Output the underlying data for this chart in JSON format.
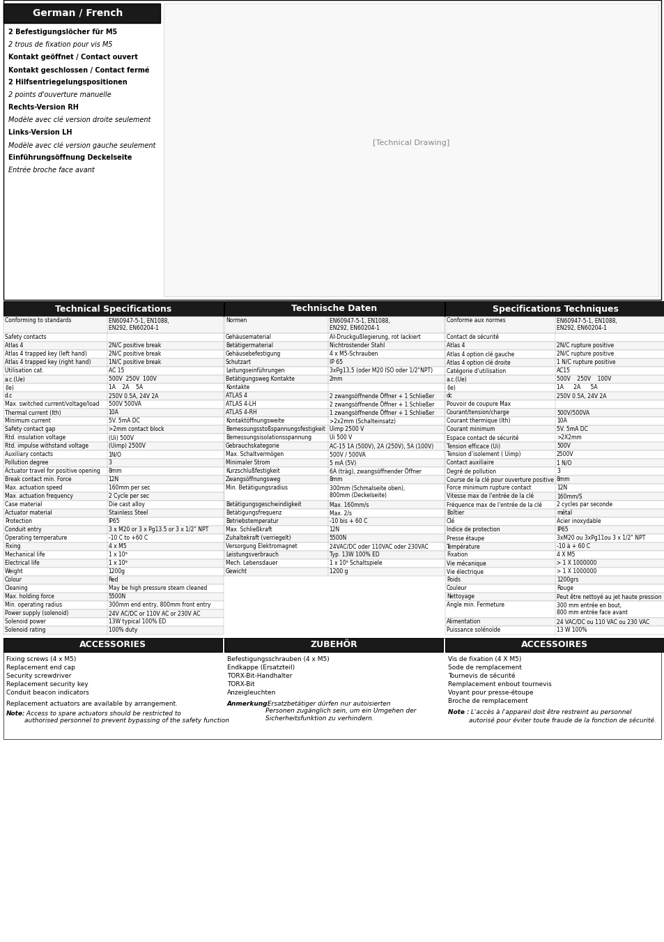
{
  "page_bg": "#ffffff",
  "top_section": {
    "header_bg": "#000000",
    "header_text": "German / French",
    "header_text_color": "#ffffff",
    "left_text_lines": [
      {
        "text": "2 Befestigungslöcher für M5",
        "bold": true,
        "italic": false
      },
      {
        "text": "2 trous de fixation pour vis M5",
        "bold": false,
        "italic": true
      },
      {
        "text": "Kontakt geöffnet / Contact ouvert",
        "bold": true,
        "italic": false
      },
      {
        "text": "Kontakt geschlossen / Contact fermé",
        "bold": true,
        "italic": false
      },
      {
        "text": "2 Hilfsentriegelungspositionen",
        "bold": true,
        "italic": false
      },
      {
        "text": "2 points d'ouverture manuelle",
        "bold": false,
        "italic": true
      },
      {
        "text": "Rechts-Version RH",
        "bold": true,
        "italic": false
      },
      {
        "text": "Modèle avec clé version droite seulement",
        "bold": false,
        "italic": true
      },
      {
        "text": "Links-Version LH",
        "bold": true,
        "italic": false
      },
      {
        "text": "Modèle avec clé version gauche seulement",
        "bold": false,
        "italic": true
      },
      {
        "text": "Einführungsöffnung Deckelseite",
        "bold": true,
        "italic": false
      },
      {
        "text": "Entrée broche face avant",
        "bold": false,
        "italic": true
      }
    ]
  },
  "tech_specs_col1": {
    "header": "Technical Specifications",
    "rows": [
      [
        "Conforming to standards",
        "EN60947-5-1, EN1088,\nEN292, EN60204-1"
      ],
      [
        "Safety contacts",
        ""
      ],
      [
        "Atlas 4",
        "2N/C positive break"
      ],
      [
        "Atlas 4 trapped key (left hand)",
        "2N/C positive break"
      ],
      [
        "Atlas 4 trapped key (right hand)",
        "1N/C positive break"
      ],
      [
        "Utilisation cat.",
        "AC 15"
      ],
      [
        "a.c.(Ue)",
        "500V  250V  100V"
      ],
      [
        "(le)",
        "1A    2A    5A"
      ],
      [
        "d.c",
        "250V 0.5A, 24V 2A"
      ],
      [
        "Max. switched current/voltage/load",
        "500V 500VA"
      ],
      [
        "Thermal current (Ith)",
        "10A"
      ],
      [
        "Minimum current",
        "5V. 5mA DC"
      ],
      [
        "Safety contact gap",
        ">2mm contact block"
      ],
      [
        "Rtd. insulation voltage",
        "(Ui) 500V"
      ],
      [
        "Rtd. impulse withstand voltage",
        "(Uimp) 2500V"
      ],
      [
        "Auxiliary contacts",
        "1N/O"
      ],
      [
        "Pollution degree",
        "3"
      ],
      [
        "Actuator travel for positive opening",
        "8mm"
      ],
      [
        "Break contact min. Force",
        "12N"
      ],
      [
        "Max. actuation speed",
        "160mm per sec"
      ],
      [
        "Max. actuation frequency",
        "2 Cycle per sec"
      ],
      [
        "Case material",
        "Die cast alloy"
      ],
      [
        "Actuator material",
        "Stainless Steel"
      ],
      [
        "Protection",
        "IP65"
      ],
      [
        "Conduit entry",
        "3 x M20 or 3 x Pg13.5 or 3 x 1/2\" NPT"
      ],
      [
        "Operating temperature",
        "-10 C to +60 C"
      ],
      [
        "Fixing",
        "4 x M5"
      ],
      [
        "Mechanical life",
        "1 x 10⁶"
      ],
      [
        "Electrical life",
        "1 x 10⁶"
      ],
      [
        "Weight",
        "1200g"
      ],
      [
        "Colour",
        "Red"
      ],
      [
        "Cleaning",
        "May be high pressure steam cleaned"
      ],
      [
        "Max. holding force",
        "5500N"
      ],
      [
        "Min. operating radius",
        "300mm end entry, 800mm front entry"
      ],
      [
        "Power supply (solenoid)",
        "24V AC/DC or 110V AC or 230V AC"
      ],
      [
        "Solenoid power",
        "13W typical 100% ED"
      ],
      [
        "Solenoid rating",
        "100% duty"
      ]
    ]
  },
  "tech_specs_col2": {
    "header": "Technische Daten",
    "rows": [
      [
        "Normen",
        "EN60947-5-1, EN1088,\nEN292, EN60204-1"
      ],
      [
        "Gehäusematerial",
        "Al-Druckgußlegierung, rot lackiert"
      ],
      [
        "Betätigermaterial",
        "Nichtrostender Stahl"
      ],
      [
        "Gehäusebefestigung",
        "4 x M5-Schrauben"
      ],
      [
        "Schutzart",
        "IP 65"
      ],
      [
        "Leitungseinführungen",
        "3xPg13,5 (oder M20 ISO oder 1/2\"NPT)"
      ],
      [
        "Betätigungsweg Kontakte",
        "2mm"
      ],
      [
        "Kontakte",
        ""
      ],
      [
        "ATLAS 4",
        "2 zwangsöffnende Öffner + 1 Schließer"
      ],
      [
        "ATLAS 4-LH",
        "2 zwangsöffnende Öffner + 1 Schließer"
      ],
      [
        "ATLAS 4-RH",
        "1 zwangsöffnende Öffner + 1 Schließer"
      ],
      [
        "Kontaktöffnungsweite",
        ">2x2mm (Schalteinsatz)"
      ],
      [
        "Bemessungsstoßspannungsfestigkeit",
        "Uimp 2500 V"
      ],
      [
        "Bemessungsisolationsspannung",
        "Ui 500 V"
      ],
      [
        "Gebrauchskategorie",
        "AC-15 1A (500V), 2A (250V), 5A (100V)"
      ],
      [
        "Max. Schaltvermögen",
        "500V / 500VA"
      ],
      [
        "Minimaler Strom",
        "5 mA (5V)"
      ],
      [
        "Kurzschlußfestigkeit",
        "6A (träg), zwangsöffnender Öffner"
      ],
      [
        "Zwangsöffnungsweg",
        "8mm"
      ],
      [
        "Min. Betätigungsradius",
        "300mm (Schmalseite oben),\n800mm (Deckelseite)"
      ],
      [
        "Betätigungsgeschwindigkeit",
        "Max. 160mm/s"
      ],
      [
        "Betätigungsfrequenz",
        "Max. 2/s"
      ],
      [
        "Betriebstemperatur",
        "-10 bis + 60 C"
      ],
      [
        "Max. Schließkraft",
        "12N"
      ],
      [
        "Zuhaltekraft (verriegelt)",
        "5500N"
      ],
      [
        "Versorgung Elektromagnet",
        "24VAC/DC oder 110VAC oder 230VAC"
      ],
      [
        "Leistungsverbrauch",
        "Typ. 13W 100% ED"
      ],
      [
        "Mech. Lebensdauer",
        "1 x 10⁶ Schaltspiele"
      ],
      [
        "Gewicht",
        "1200 g"
      ]
    ]
  },
  "tech_specs_col3": {
    "header": "Specifications Techniques",
    "rows": [
      [
        "Conforme aux normes",
        "EN60947-5-1, EN1088,\nEN292, EN60204-1"
      ],
      [
        "Contact de sécurité",
        ""
      ],
      [
        "Atlas 4",
        "2N/C rupture positive"
      ],
      [
        "Atlas 4 option clé gauche",
        "2N/C rupture positive"
      ],
      [
        "Atlas 4 option clé droite",
        "1 N/C rupture positive"
      ],
      [
        "Catégorie d'utilisation",
        "AC15"
      ],
      [
        "a.c.(Ue)",
        "500V    250V    100V"
      ],
      [
        "(le)",
        "1A      2A      5A"
      ],
      [
        "dc",
        "250V 0.5A, 24V 2A"
      ],
      [
        "Pouvoir de coupure Max",
        ""
      ],
      [
        "Courant/tension/charge",
        "500V/500VA"
      ],
      [
        "Courant thermique (Ith)",
        "10A"
      ],
      [
        "Courant minimum",
        "5V. 5mA DC"
      ],
      [
        "Espace contact de sécurité",
        ">2X2mm"
      ],
      [
        "Tension efficace (Ui)",
        "500V"
      ],
      [
        "Tension d'isolement ( Uimp)",
        "2500V"
      ],
      [
        "Contact auxiliaire",
        "1 N/O"
      ],
      [
        "Degré de pollution",
        "3"
      ],
      [
        "Course de la clé pour ouverture positive",
        "8mm"
      ],
      [
        "Force minimum rupture contact",
        "12N"
      ],
      [
        "Vitesse max de l'entrée de la clé",
        "160mm/S"
      ],
      [
        "Fréquence max de l'entrée de la clé",
        "2 cycles par seconde"
      ],
      [
        "Boîtier",
        "métal"
      ],
      [
        "Clé",
        "Acier inoxydable"
      ],
      [
        "Indice de protection",
        "IP65"
      ],
      [
        "Presse étaupe",
        "3xM20 ou 3xPg11ou 3 x 1/2\" NPT"
      ],
      [
        "Température",
        "-10 à + 60 C"
      ],
      [
        "Fixation",
        "4 X M5"
      ],
      [
        "Vie mécanique",
        "> 1 X 1000000"
      ],
      [
        "Vie électrique",
        "> 1 X 1000000"
      ],
      [
        "Poids",
        "1200grs"
      ],
      [
        "Couleur",
        "Rouge"
      ],
      [
        "Nettoyage",
        "Peut être nettoyé au jet haute pression"
      ],
      [
        "Angle min. Fermeture",
        "300 mm entrée en bout,\n800 mm entrée face avant"
      ],
      [
        "Alimentation",
        "24 VAC/DC ou 110 VAC ou 230 VAC"
      ],
      [
        "Puissance solénoïde",
        "13 W 100%"
      ]
    ]
  },
  "accessories": {
    "col1_header": "ACCESSORIES",
    "col2_header": "ZUBEHÖR",
    "col3_header": "ACCESSOIRES",
    "col1_items": [
      "Fixing screws (4 x M5)",
      "Replacement end cap",
      "Security screwdriver",
      "Replacement security key",
      "Conduit beacon indicators"
    ],
    "col1_note1": "Replacement actuators are available by arrangement.",
    "col1_note2_bold": "Note:",
    "col1_note2": " Access to spare actuators should be restricted to\nauthorised personnel to prevent bypassing of the safety function",
    "col2_items": [
      "Befestigungsschrauben (4 x M5)",
      "Endkappe (Ersatzteil)",
      "TORX-Bit-Handhalter",
      "TORX-Bit",
      "Anzeigleuchten"
    ],
    "col2_note_bold": "Anmerkung:",
    "col2_note": " Ersatzbetätiger dürfen nur autoisierten\nPersonen zugänglich sein, um ein Umgehen der\nSicherheitsfunktion zu verhindern.",
    "col3_items": [
      "Vis de fixation (4 X M5)",
      "Sode de remplacement",
      "Tournevis de sécurité",
      "Remplacement enbout tournevis",
      "Voyant pour presse-étoupe",
      "Broche de remplacement"
    ],
    "col3_note_bold": "Note :",
    "col3_note": " L'accès à l'appareil doit être restreint au personnel\nautorisé pour éviter toute fraude de la fonction de sécurité."
  },
  "colors": {
    "header_bg": "#1a1a1a",
    "header_text": "#ffffff",
    "table_border": "#000000",
    "row_bg_alt": "#f0f0f0",
    "row_bg": "#ffffff",
    "text": "#000000"
  }
}
